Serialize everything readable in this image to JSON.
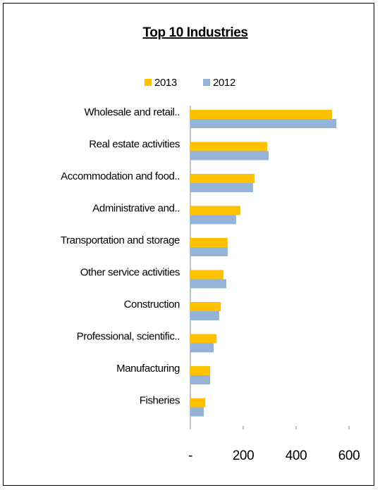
{
  "chart_data": {
    "type": "hbar",
    "title": "Top 10 Industries",
    "categories": [
      "Wholesale and retail..",
      "Real estate activities",
      "Accommodation and food..",
      "Administrative and..",
      "Transportation and storage",
      "Other service activities",
      "Construction",
      "Professional, scientific..",
      "Manufacturing",
      "Fisheries"
    ],
    "series": [
      {
        "name": "2013",
        "color": "#ffc000",
        "values": [
          536,
          291,
          243,
          189,
          141,
          125,
          115,
          99,
          75,
          56
        ]
      },
      {
        "name": "2012",
        "color": "#95b3d7",
        "values": [
          552,
          296,
          237,
          173,
          141,
          136,
          109,
          88,
          75,
          51
        ]
      }
    ],
    "xlim": [
      0,
      600
    ],
    "xticks": [
      {
        "value": 0,
        "label": "-"
      },
      200,
      400,
      600
    ],
    "legend": "top"
  }
}
